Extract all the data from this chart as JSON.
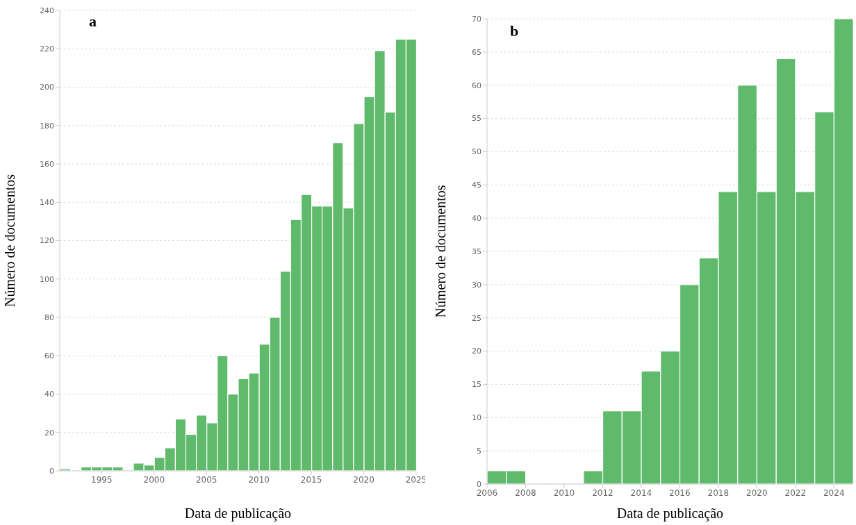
{
  "chart_data": [
    {
      "type": "histogram",
      "title": "a",
      "xlabel": "Data de publicação",
      "ylabel": "Número de documentos",
      "color": "#5fba6b",
      "grid": "y",
      "bins": [
        1991,
        1992,
        1993,
        1994,
        1995,
        1996,
        1997,
        1998,
        1999,
        2000,
        2001,
        2002,
        2003,
        2004,
        2005,
        2006,
        2007,
        2008,
        2009,
        2010,
        2011,
        2012,
        2013,
        2014,
        2015,
        2016,
        2017,
        2018,
        2019,
        2020,
        2021,
        2022,
        2023,
        2024,
        2025
      ],
      "values": [
        1,
        0,
        2,
        2,
        2,
        2,
        0,
        4,
        3,
        7,
        12,
        27,
        19,
        29,
        25,
        60,
        40,
        48,
        51,
        66,
        80,
        104,
        131,
        144,
        138,
        138,
        171,
        137,
        181,
        195,
        219,
        187,
        225,
        225
      ],
      "xlim": [
        1991,
        2025
      ],
      "xticks": [
        1995,
        2000,
        2005,
        2010,
        2015,
        2020,
        2025
      ],
      "ylim": [
        0,
        240
      ],
      "yticks": [
        0,
        20,
        40,
        60,
        80,
        100,
        120,
        140,
        160,
        180,
        200,
        220,
        240
      ]
    },
    {
      "type": "histogram",
      "title": "b",
      "xlabel": "Data de publicação",
      "ylabel": "Número de documentos",
      "color": "#5fba6b",
      "grid": "y",
      "bins": [
        2006,
        2007,
        2008,
        2009,
        2010,
        2011,
        2012,
        2013,
        2014,
        2015,
        2016,
        2017,
        2018,
        2019,
        2020,
        2021,
        2022,
        2023,
        2024,
        2025
      ],
      "values": [
        2,
        2,
        0,
        0,
        0,
        2,
        11,
        11,
        17,
        20,
        30,
        34,
        44,
        60,
        44,
        64,
        44,
        56,
        70
      ],
      "xlim": [
        2006,
        2025
      ],
      "xticks": [
        2006,
        2008,
        2010,
        2012,
        2014,
        2016,
        2018,
        2020,
        2022,
        2024
      ],
      "ylim": [
        0,
        70
      ],
      "yticks": [
        0,
        5,
        10,
        15,
        20,
        25,
        30,
        35,
        40,
        45,
        50,
        55,
        60,
        65,
        70
      ]
    }
  ]
}
